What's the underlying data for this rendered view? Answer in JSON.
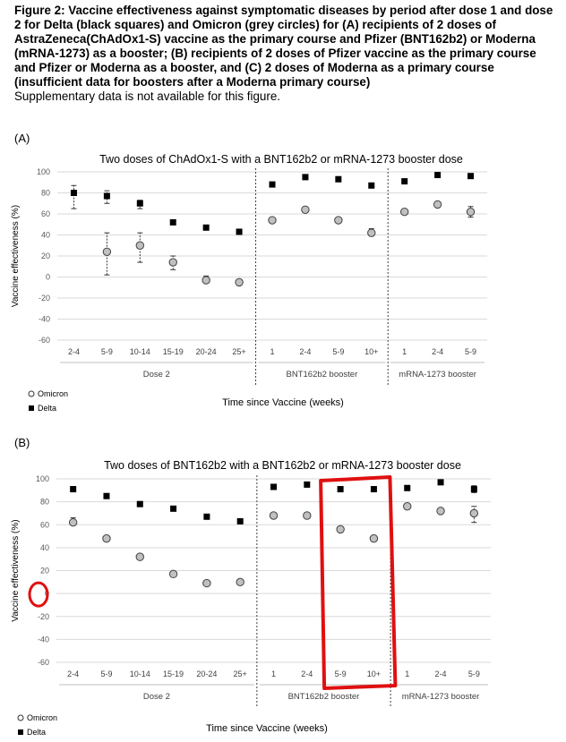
{
  "caption": {
    "title": "Figure 2: Vaccine effectiveness against symptomatic diseases by period after dose 1 and dose 2 for Delta (black squares) and Omicron (grey circles) for (A) recipients of 2 doses of AstraZeneca(ChAdOx1-S) vaccine as the primary course and Pfizer (BNT162b2) or Moderna (mRNA-1273) as a booster; (B) recipients of 2 doses of Pfizer vaccine as the primary course and Pfizer or Moderna as a booster, and (C) 2 doses of Moderna as a primary course (insufficient data for boosters after a Moderna primary course)",
    "note": "Supplementary data is not available for this figure."
  },
  "chart_data": [
    {
      "panel": "(A)",
      "type": "scatter",
      "title": "Two doses of ChAdOx1-S with a BNT162b2 or mRNA-1273 booster dose",
      "xlabel": "Time since Vaccine (weeks)",
      "ylabel": "Vaccine effectiveness (%)",
      "ylim": [
        -60,
        100
      ],
      "yticks": [
        "100",
        "80",
        "60",
        "40",
        "20",
        "0",
        "-20",
        "-40",
        "-60"
      ],
      "grid": true,
      "legend_position": "bottom-left",
      "categories": [
        "2-4",
        "5-9",
        "10-14",
        "15-19",
        "20-24",
        "25+",
        "1",
        "2-4",
        "5-9",
        "10+",
        "1",
        "2-4",
        "5-9"
      ],
      "groups": [
        {
          "label": "Dose 2",
          "count": 6
        },
        {
          "label": "BNT162b2 booster",
          "count": 4
        },
        {
          "label": "mRNA-1273 booster",
          "count": 3
        }
      ],
      "series": [
        {
          "name": "Omicron",
          "marker": "circle",
          "color": "#c0c0c0",
          "values": [
            null,
            24,
            30,
            14,
            -3,
            -5,
            54,
            64,
            54,
            42,
            62,
            69,
            62
          ],
          "error_low": [
            null,
            2,
            14,
            7,
            -5,
            -7,
            null,
            null,
            null,
            39,
            null,
            null,
            57
          ],
          "error_high": [
            null,
            42,
            42,
            20,
            1,
            -3,
            null,
            null,
            null,
            46,
            null,
            null,
            67
          ]
        },
        {
          "name": "Delta",
          "marker": "square",
          "color": "#000000",
          "values": [
            80,
            77,
            70,
            52,
            47,
            43,
            88,
            95,
            93,
            87,
            91,
            97,
            96
          ],
          "error_low": [
            65,
            70,
            65,
            null,
            null,
            null,
            null,
            null,
            null,
            null,
            null,
            null,
            null
          ],
          "error_high": [
            87,
            82,
            73,
            null,
            null,
            null,
            null,
            null,
            null,
            null,
            null,
            null,
            null
          ]
        }
      ]
    },
    {
      "panel": "(B)",
      "type": "scatter",
      "title": "Two doses of BNT162b2 with a BNT162b2 or mRNA-1273 booster dose",
      "xlabel": "Time since Vaccine (weeks)",
      "ylabel": "Vaccine effectiveness (%)",
      "ylim": [
        -60,
        100
      ],
      "yticks": [
        "100",
        "80",
        "60",
        "40",
        "20",
        "0",
        "-20",
        "-40",
        "-60"
      ],
      "grid": true,
      "legend_position": "bottom-left",
      "categories": [
        "2-4",
        "5-9",
        "10-14",
        "15-19",
        "20-24",
        "25+",
        "1",
        "2-4",
        "5-9",
        "10+",
        "1",
        "2-4",
        "5-9"
      ],
      "groups": [
        {
          "label": "Dose 2",
          "count": 6
        },
        {
          "label": "BNT162b2 booster",
          "count": 4
        },
        {
          "label": "mRNA-1273 booster",
          "count": 3
        }
      ],
      "series": [
        {
          "name": "Omicron",
          "marker": "circle",
          "color": "#c0c0c0",
          "values": [
            62,
            48,
            32,
            17,
            9,
            10,
            68,
            68,
            56,
            48,
            76,
            72,
            70
          ],
          "error_low": [
            60,
            null,
            null,
            null,
            null,
            8,
            null,
            null,
            null,
            null,
            74,
            null,
            62
          ],
          "error_high": [
            66,
            null,
            null,
            null,
            null,
            12,
            null,
            null,
            null,
            null,
            78,
            null,
            76
          ]
        },
        {
          "name": "Delta",
          "marker": "square",
          "color": "#000000",
          "values": [
            91,
            85,
            78,
            74,
            67,
            63,
            93,
            95,
            91,
            91,
            92,
            97,
            91
          ],
          "error_low": [
            null,
            null,
            null,
            null,
            null,
            null,
            null,
            null,
            null,
            null,
            null,
            null,
            88
          ],
          "error_high": [
            null,
            null,
            null,
            null,
            null,
            null,
            null,
            null,
            null,
            null,
            null,
            null,
            94
          ]
        }
      ],
      "highlight_color": "#e01010"
    }
  ]
}
